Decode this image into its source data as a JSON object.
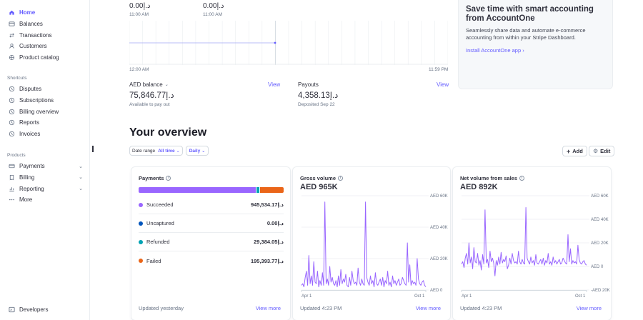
{
  "sidebar": {
    "top_items": [
      {
        "label": "Home",
        "icon": "home-icon",
        "active": true
      },
      {
        "label": "Balances",
        "icon": "balances-icon"
      },
      {
        "label": "Transactions",
        "icon": "transactions-icon"
      },
      {
        "label": "Customers",
        "icon": "customers-icon"
      },
      {
        "label": "Product catalog",
        "icon": "product-catalog-icon"
      }
    ],
    "shortcuts_heading": "Shortcuts",
    "shortcuts": [
      {
        "label": "Disputes",
        "icon": "clock-icon"
      },
      {
        "label": "Subscriptions",
        "icon": "clock-icon"
      },
      {
        "label": "Billing overview",
        "icon": "clock-icon"
      },
      {
        "label": "Reports",
        "icon": "clock-icon"
      },
      {
        "label": "Invoices",
        "icon": "clock-icon"
      }
    ],
    "products_heading": "Products",
    "products": [
      {
        "label": "Payments",
        "icon": "payments-icon"
      },
      {
        "label": "Billing",
        "icon": "billing-icon"
      },
      {
        "label": "Reporting",
        "icon": "reporting-icon"
      },
      {
        "label": "More",
        "icon": "more-icon"
      }
    ],
    "developers": {
      "label": "Developers",
      "icon": "developers-icon"
    }
  },
  "today": {
    "left_value": "0.00د.إ",
    "left_time": "11:00 AM",
    "right_value": "0.00د.إ",
    "right_time": "11:00 AM",
    "axis_start": "12:00 AM",
    "axis_end": "11:59 PM"
  },
  "balance": {
    "label": "AED balance",
    "value": "75,846.77د.إ",
    "sub": "Available to pay out",
    "view": "View"
  },
  "payouts": {
    "label": "Payouts",
    "value": "4,358.13د.إ",
    "sub": "Deposited Sep 22",
    "view": "View"
  },
  "promo": {
    "title": "Save time with smart accounting from AccountOne",
    "body": "Seamlessly share data and automate e-commerce accounting from within your Stripe Dashboard.",
    "link": "Install AccountOne app"
  },
  "overview": {
    "title": "Your overview",
    "date_range_label": "Date range",
    "date_range_value": "All time",
    "interval_value": "Daily",
    "add_label": "Add",
    "edit_label": "Edit"
  },
  "payments_card": {
    "title": "Payments",
    "rows": [
      {
        "label": "Succeeded",
        "amount": "945,534.17د.إ",
        "color": "#9966ff"
      },
      {
        "label": "Uncaptured",
        "amount": "0.00د.إ",
        "color": "#0055bc"
      },
      {
        "label": "Refunded",
        "amount": "29,384.05د.إ",
        "color": "#00a2b3"
      },
      {
        "label": "Failed",
        "amount": "195,393.77د.إ",
        "color": "#ea6518"
      }
    ],
    "bar": [
      {
        "share": 0.8106,
        "color": "#9966ff"
      },
      {
        "share": 0.0252,
        "color": "#00a2b3"
      },
      {
        "share": 0.1675,
        "color": "#ea6518"
      }
    ],
    "footer": "Updated yesterday",
    "view_more": "View more"
  },
  "gross_card": {
    "title": "Gross volume",
    "value": "AED 965K",
    "footer": "Updated 4:23 PM",
    "view_more": "View more"
  },
  "net_card": {
    "title": "Net volume from sales",
    "value": "AED 892K",
    "footer": "Updated 4:23 PM",
    "view_more": "View more"
  },
  "chart_data": [
    {
      "type": "line",
      "title": "Gross volume",
      "x_labels": [
        "Apr 1",
        "Oct 1"
      ],
      "y_ticks": [
        "AED 0",
        "AED 20K",
        "AED 40K",
        "AED 60K"
      ],
      "ylim": [
        0,
        60000
      ],
      "grid": true,
      "color": "#9966ff",
      "values": [
        3000,
        4000,
        2000,
        8000,
        12000,
        3000,
        22000,
        4000,
        9000,
        3000,
        18000,
        5000,
        4000,
        12000,
        2000,
        6000,
        3000,
        11000,
        3000,
        56000,
        4000,
        7000,
        3000,
        15000,
        5000,
        8000,
        4000,
        3000,
        6000,
        2000,
        9000,
        3000,
        13000,
        4000,
        7000,
        5000,
        10000,
        3000,
        2000,
        8000,
        3000,
        12000,
        6000,
        4000,
        5000,
        3000,
        14000,
        5000,
        3000,
        7000,
        4000,
        3000,
        56000,
        8000,
        5000,
        3000,
        9000,
        4000,
        6000,
        2000,
        11000,
        4000,
        3000,
        5000,
        7000,
        3000,
        8000,
        2000,
        6000,
        4000,
        12000,
        3000,
        5000,
        2000,
        9000,
        4000,
        6000,
        3000,
        5000,
        7000,
        3000,
        4000,
        8000,
        6000,
        4000,
        3000,
        30000,
        5000,
        16000,
        3000,
        6000,
        4000,
        5000,
        3000,
        20000,
        7000,
        4000,
        3000,
        5000,
        6000,
        3000,
        2000
      ]
    },
    {
      "type": "line",
      "title": "Net volume from sales",
      "x_labels": [
        "Apr 1",
        "Oct 1"
      ],
      "y_ticks": [
        "-AED 20K",
        "AED 0",
        "AED 20K",
        "AED 40K",
        "AED 60K"
      ],
      "ylim": [
        -20000,
        60000
      ],
      "grid": true,
      "color": "#9966ff",
      "values": [
        2000,
        4000,
        -1000,
        7000,
        11000,
        2000,
        20000,
        3000,
        8000,
        -2000,
        16000,
        4000,
        3000,
        11000,
        1000,
        5000,
        -3000,
        10000,
        2000,
        48000,
        3000,
        6000,
        -1000,
        13000,
        4000,
        7000,
        3000,
        -8000,
        5000,
        1000,
        8000,
        2000,
        12000,
        3000,
        6000,
        4000,
        9000,
        -2000,
        1000,
        7000,
        2000,
        11000,
        5000,
        3000,
        4000,
        2000,
        13000,
        4000,
        2000,
        6000,
        3000,
        2000,
        50000,
        7000,
        4000,
        2000,
        8000,
        3000,
        5000,
        1000,
        10000,
        3000,
        2000,
        4000,
        6000,
        2000,
        7000,
        1000,
        5000,
        3000,
        11000,
        2000,
        4000,
        1000,
        8000,
        3000,
        5000,
        2000,
        4000,
        6000,
        2000,
        3000,
        7000,
        5000,
        3000,
        2000,
        27000,
        4000,
        15000,
        2000,
        5000,
        3000,
        4000,
        2000,
        18000,
        6000,
        3000,
        2000,
        4000,
        5000,
        2000,
        1000
      ]
    }
  ]
}
